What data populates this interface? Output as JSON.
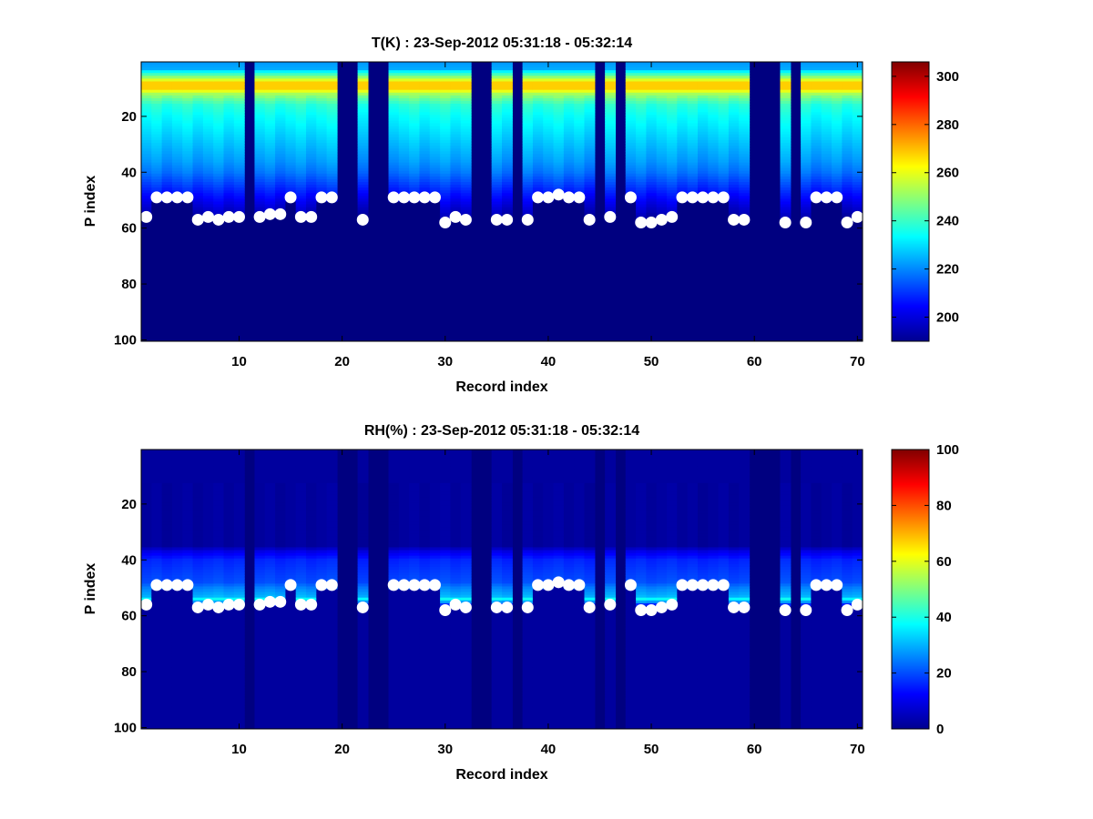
{
  "chart_data": [
    {
      "type": "heatmap",
      "title": "T(K) : 23-Sep-2012 05:31:18 - 05:32:14",
      "xlabel": "Record index",
      "ylabel": "P index",
      "xlim": [
        0.5,
        70.5
      ],
      "ylim": [
        0.5,
        100.5
      ],
      "y_reversed": true,
      "x_ticks": [
        10,
        20,
        30,
        40,
        50,
        60,
        70
      ],
      "y_ticks": [
        20,
        40,
        60,
        80,
        100
      ],
      "colormap": "jet",
      "clim": [
        190,
        306
      ],
      "colorbar_ticks": [
        200,
        220,
        240,
        260,
        280,
        300
      ],
      "gap_records": [
        11,
        20,
        21,
        23,
        24,
        33,
        34,
        37,
        45,
        47,
        60,
        61,
        62,
        64
      ],
      "profile_stats": {
        "p_index": [
          1,
          3,
          6,
          8,
          10,
          12,
          14,
          16,
          20,
          24,
          28,
          32,
          36,
          40,
          44,
          48,
          55,
          60,
          100
        ],
        "values": [
          222,
          224,
          250,
          268,
          268,
          252,
          244,
          238,
          234,
          231,
          228,
          225,
          222,
          218,
          212,
          206,
          196,
          190,
          190
        ]
      },
      "markers": {
        "style": "white filled circle",
        "x": [
          1,
          2,
          3,
          4,
          5,
          6,
          7,
          8,
          9,
          10,
          12,
          13,
          14,
          15,
          16,
          17,
          18,
          19,
          22,
          25,
          26,
          27,
          28,
          29,
          30,
          31,
          32,
          35,
          36,
          38,
          39,
          40,
          41,
          42,
          43,
          44,
          46,
          48,
          49,
          50,
          51,
          52,
          53,
          54,
          55,
          56,
          57,
          58,
          59,
          63,
          65,
          66,
          67,
          68,
          69,
          70
        ],
        "y": [
          56,
          49,
          49,
          49,
          49,
          57,
          56,
          57,
          56,
          56,
          56,
          55,
          55,
          49,
          56,
          56,
          49,
          49,
          57,
          49,
          49,
          49,
          49,
          49,
          58,
          56,
          57,
          57,
          57,
          57,
          49,
          49,
          48,
          49,
          49,
          57,
          56,
          49,
          58,
          58,
          57,
          56,
          49,
          49,
          49,
          49,
          49,
          57,
          57,
          58,
          58,
          49,
          49,
          49,
          58,
          56
        ]
      }
    },
    {
      "type": "heatmap",
      "title": "RH(%) : 23-Sep-2012 05:31:18 - 05:32:14",
      "xlabel": "Record index",
      "ylabel": "P index",
      "xlim": [
        0.5,
        70.5
      ],
      "ylim": [
        0.5,
        100.5
      ],
      "y_reversed": true,
      "x_ticks": [
        10,
        20,
        30,
        40,
        50,
        60,
        70
      ],
      "y_ticks": [
        20,
        40,
        60,
        80,
        100
      ],
      "colormap": "jet",
      "clim": [
        0,
        100
      ],
      "colorbar_ticks": [
        0,
        20,
        40,
        60,
        80,
        100
      ],
      "gap_records": [
        11,
        20,
        21,
        23,
        24,
        33,
        34,
        37,
        45,
        47,
        60,
        61,
        62,
        64
      ],
      "profile_stats": {
        "p_index": [
          1,
          35,
          37,
          40,
          44,
          48,
          50,
          53,
          54,
          55,
          57,
          60,
          100
        ],
        "values": [
          3,
          3,
          10,
          16,
          18,
          20,
          25,
          30,
          38,
          28,
          4,
          3,
          3
        ]
      },
      "markers": {
        "style": "white filled circle",
        "x": [
          1,
          2,
          3,
          4,
          5,
          6,
          7,
          8,
          9,
          10,
          12,
          13,
          14,
          15,
          16,
          17,
          18,
          19,
          22,
          25,
          26,
          27,
          28,
          29,
          30,
          31,
          32,
          35,
          36,
          38,
          39,
          40,
          41,
          42,
          43,
          44,
          46,
          48,
          49,
          50,
          51,
          52,
          53,
          54,
          55,
          56,
          57,
          58,
          59,
          63,
          65,
          66,
          67,
          68,
          69,
          70
        ],
        "y": [
          56,
          49,
          49,
          49,
          49,
          57,
          56,
          57,
          56,
          56,
          56,
          55,
          55,
          49,
          56,
          56,
          49,
          49,
          57,
          49,
          49,
          49,
          49,
          49,
          58,
          56,
          57,
          57,
          57,
          57,
          49,
          49,
          48,
          49,
          49,
          57,
          56,
          49,
          58,
          58,
          57,
          56,
          49,
          49,
          49,
          49,
          49,
          57,
          57,
          58,
          58,
          49,
          49,
          49,
          58,
          56
        ]
      }
    }
  ]
}
